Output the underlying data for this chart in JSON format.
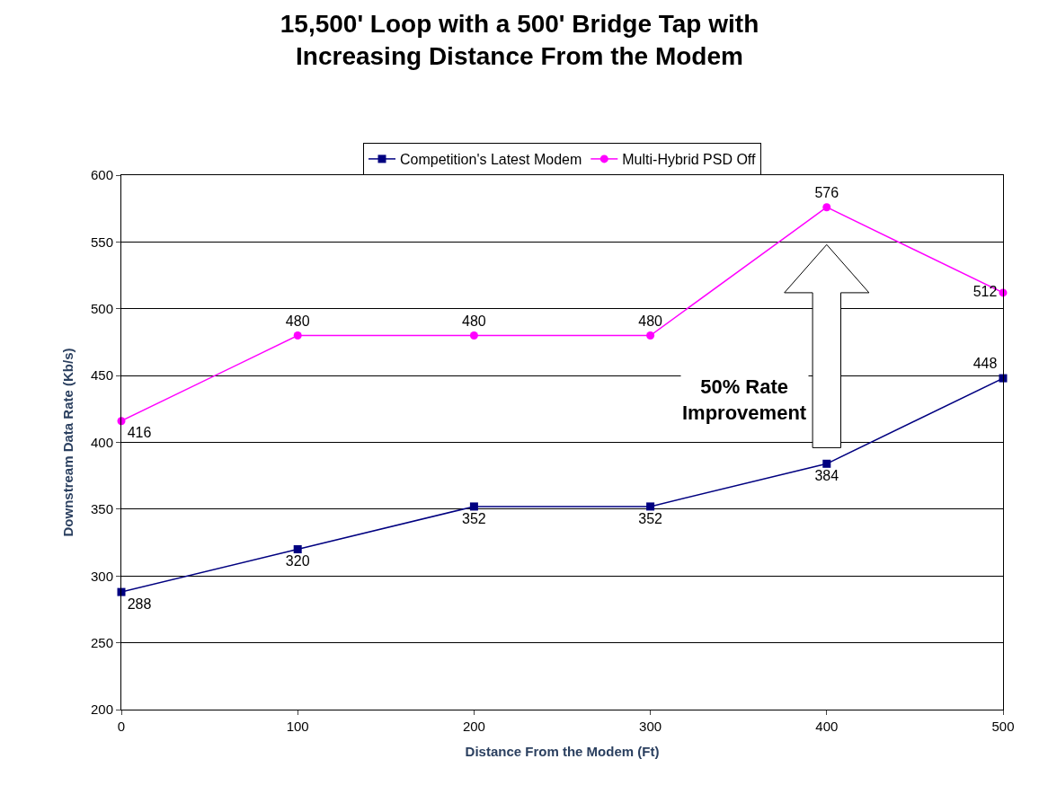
{
  "chart_data": {
    "type": "line",
    "title": "15,500' Loop with a 500' Bridge Tap with\nIncreasing Distance From the Modem",
    "xlabel": "Distance From the Modem (Ft)",
    "ylabel": "Downstream Data Rate (Kb/s)",
    "x": [
      0,
      100,
      200,
      300,
      400,
      500
    ],
    "series": [
      {
        "name": "Competition's Latest Modem",
        "color": "#000080",
        "marker": "square",
        "values": [
          288,
          320,
          352,
          352,
          384,
          448
        ]
      },
      {
        "name": "Multi-Hybrid PSD Off",
        "color": "#ff00ff",
        "marker": "circle",
        "values": [
          416,
          480,
          480,
          480,
          576,
          512
        ]
      }
    ],
    "xlim": [
      0,
      500
    ],
    "xticks": [
      0,
      100,
      200,
      300,
      400,
      500
    ],
    "ylim": [
      200,
      600
    ],
    "yticks": [
      200,
      250,
      300,
      350,
      400,
      450,
      500,
      550,
      600
    ],
    "grid": "y",
    "legend": "top",
    "data_labels": true,
    "annotations": [
      "50% Rate Improvement"
    ]
  }
}
